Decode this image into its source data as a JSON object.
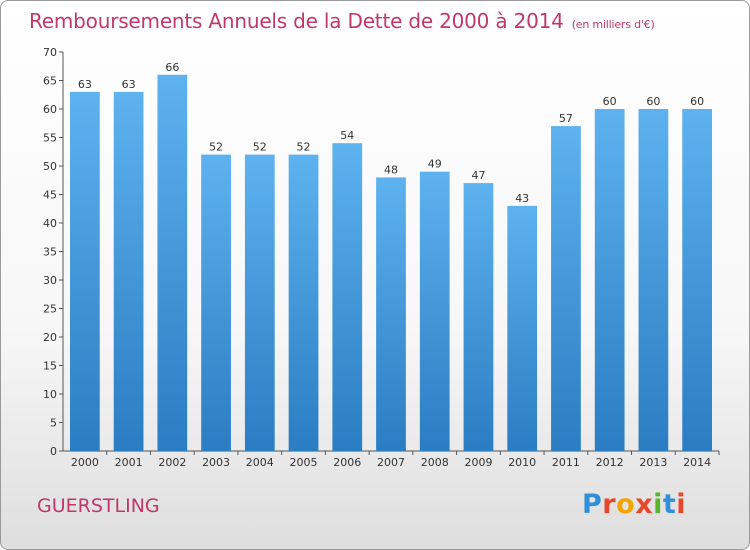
{
  "title": "Remboursements Annuels de la Dette de 2000 à 2014",
  "unit": "(en milliers d'€)",
  "town": "GUERSTLING",
  "logo": [
    "P",
    "r",
    "o",
    "x",
    "i",
    "t",
    "i"
  ],
  "logo_colors": [
    "#2f8fd8",
    "#e8472b",
    "#f4a400",
    "#e8472b",
    "#58b52d",
    "#2f8fd8",
    "#e8472b"
  ],
  "colors": {
    "bar_top": "#5db2ef",
    "bar_bottom": "#2a7dc2",
    "title": "#c2376a"
  },
  "chart_data": {
    "type": "bar",
    "title": "Remboursements Annuels de la Dette de 2000 à 2014",
    "subtitle": "(en milliers d'€)",
    "categories": [
      "2000",
      "2001",
      "2002",
      "2003",
      "2004",
      "2005",
      "2006",
      "2007",
      "2008",
      "2009",
      "2010",
      "2011",
      "2012",
      "2013",
      "2014"
    ],
    "values": [
      63,
      63,
      66,
      52,
      52,
      52,
      54,
      48,
      49,
      47,
      43,
      57,
      60,
      60,
      60
    ],
    "ylim": [
      0,
      70
    ],
    "yticks": [
      0,
      5,
      10,
      15,
      20,
      25,
      30,
      35,
      40,
      45,
      50,
      55,
      60,
      65,
      70
    ],
    "grid": false,
    "legend": "none"
  }
}
